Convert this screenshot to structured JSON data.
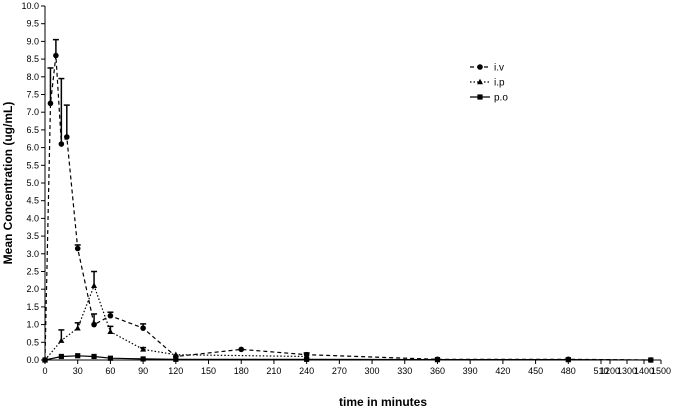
{
  "chart_data": {
    "type": "line",
    "xlabel": "time in minutes",
    "ylabel": "Mean Concentration (ug/mL)",
    "ylim": [
      0,
      10
    ],
    "yticks": [
      "0.0",
      "0.5",
      "1.0",
      "1.5",
      "2.0",
      "2.5",
      "3.0",
      "3.5",
      "4.0",
      "4.5",
      "5.0",
      "5.5",
      "6.0",
      "6.5",
      "7.0",
      "7.5",
      "8.0",
      "8.5",
      "9.0",
      "9.5",
      "10.0"
    ],
    "xticks": [
      "0",
      "30",
      "60",
      "90",
      "120",
      "150",
      "180",
      "210",
      "240",
      "270",
      "300",
      "330",
      "360",
      "390",
      "420",
      "450",
      "480",
      "510",
      "1200",
      "1300",
      "1400",
      "1500"
    ],
    "x_axis_break": [
      510,
      1200
    ],
    "legend_position": "top-right",
    "grid": false,
    "series": [
      {
        "name": "i.v",
        "marker": "circle",
        "line_style": "dashed",
        "x": [
          0,
          5,
          10,
          15,
          20,
          30,
          45,
          60,
          90,
          120,
          180,
          240,
          360,
          480,
          1440
        ],
        "y": [
          0,
          7.25,
          8.6,
          6.1,
          6.3,
          3.15,
          1.0,
          1.25,
          0.9,
          0.1,
          0.3,
          0.15,
          0.02,
          0.02,
          0.0
        ],
        "error": [
          0,
          1.0,
          0.45,
          1.85,
          0.9,
          0.1,
          0.3,
          0.1,
          0.12,
          0,
          0,
          0.05,
          0,
          0,
          0
        ]
      },
      {
        "name": "i.p",
        "marker": "triangle",
        "line_style": "dotted",
        "x": [
          0,
          15,
          30,
          45,
          60,
          90,
          120,
          240
        ],
        "y": [
          0,
          0.55,
          0.9,
          2.1,
          0.8,
          0.3,
          0.15,
          0.1
        ],
        "error": [
          0,
          0.3,
          0.15,
          0.4,
          0.15,
          0.05,
          0,
          0
        ]
      },
      {
        "name": "p.o",
        "marker": "square",
        "line_style": "solid",
        "x": [
          0,
          15,
          30,
          45,
          60,
          90,
          120,
          240,
          360,
          480,
          1440
        ],
        "y": [
          0,
          0.1,
          0.12,
          0.1,
          0.05,
          0.03,
          0.02,
          0.02,
          0.01,
          0.01,
          0.0
        ],
        "error": [
          0,
          0,
          0,
          0,
          0,
          0,
          0,
          0,
          0,
          0,
          0
        ]
      }
    ]
  }
}
